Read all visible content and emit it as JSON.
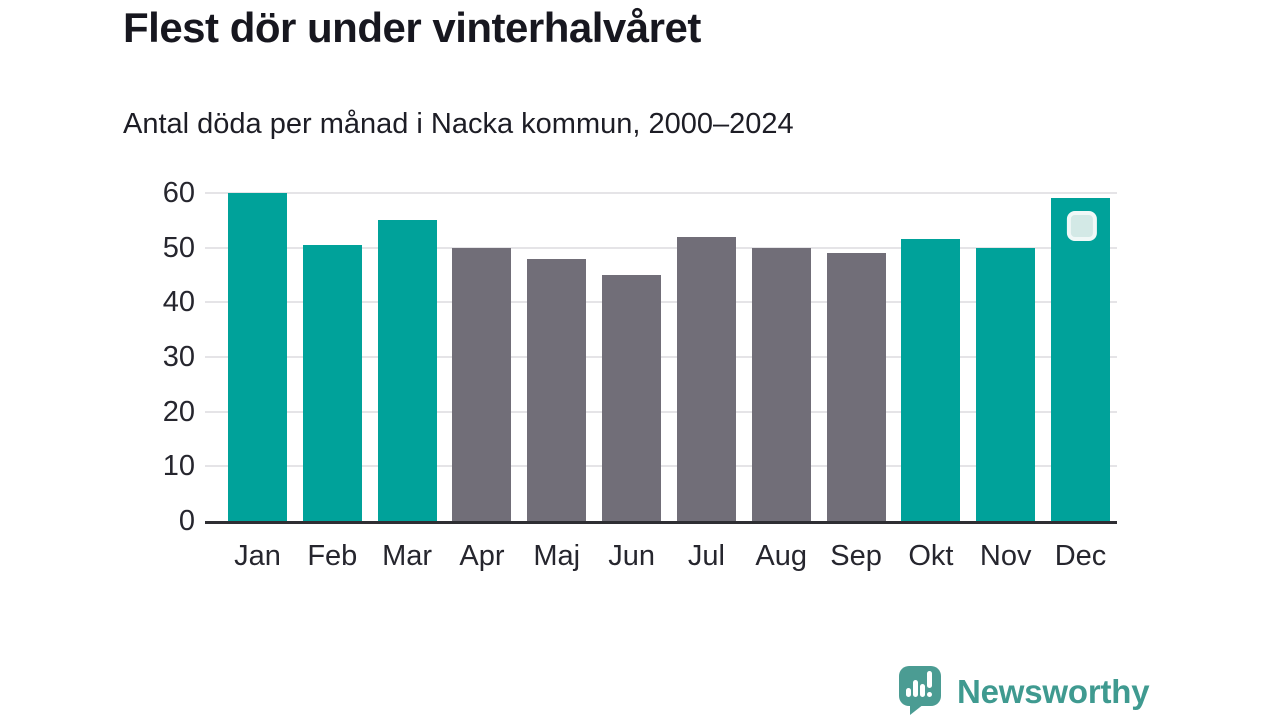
{
  "chart_data": {
    "type": "bar",
    "title": "Flest dör under vinterhalvåret",
    "subtitle": "Antal döda per månad i Nacka kommun, 2000–2024",
    "categories": [
      "Jan",
      "Feb",
      "Mar",
      "Apr",
      "Maj",
      "Jun",
      "Jul",
      "Aug",
      "Sep",
      "Okt",
      "Nov",
      "Dec"
    ],
    "values": [
      60,
      50.5,
      55,
      50,
      48,
      45,
      52,
      50,
      49,
      51.5,
      50,
      59
    ],
    "bar_groups": [
      "winter",
      "winter",
      "winter",
      "summer",
      "summer",
      "summer",
      "summer",
      "summer",
      "summer",
      "winter",
      "winter",
      "winter"
    ],
    "series_colors": {
      "winter": "#00a29a",
      "summer": "#716e78"
    },
    "xlabel": "",
    "ylabel": "",
    "ylim": [
      0,
      60
    ],
    "yticks": [
      0,
      10,
      20,
      30,
      40,
      50,
      60
    ],
    "grid": true,
    "legend": false,
    "highlight_marker": {
      "category": "Dec",
      "fill": "#d3e9e6",
      "border": "#f0f8f7"
    }
  },
  "footer": {
    "brand_name": "Newsworthy",
    "brand_color": "#3f9a90",
    "brand_icon": "speech-bubble-bar-chart"
  }
}
